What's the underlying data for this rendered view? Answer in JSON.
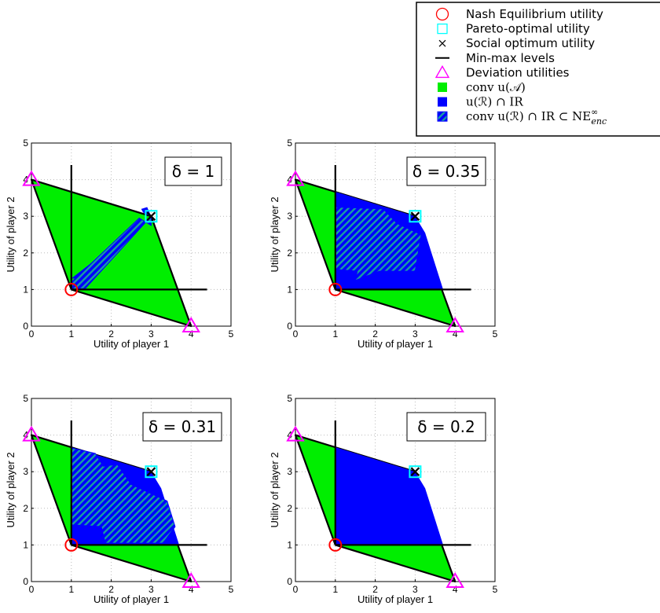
{
  "colors": {
    "conv_fill": "#00ee00",
    "ir_fill": "#0000ff",
    "hatch": "#18a0a0",
    "nash": "#ff0000",
    "pareto": "#00ffff",
    "deviation": "#ff00ff",
    "grid": "#bbbbbb"
  },
  "legend": [
    {
      "icon": "circle-icon",
      "label": "Nash Equilibrium utility"
    },
    {
      "icon": "square-icon",
      "label": "Pareto-optimal utility"
    },
    {
      "icon": "cross-icon",
      "label": "Social optimum utility"
    },
    {
      "icon": "line-icon",
      "label": "Min-max levels"
    },
    {
      "icon": "triangle-icon",
      "label": "Deviation utilities"
    },
    {
      "icon": "green-square-icon",
      "label": "conv u(𝒜)"
    },
    {
      "icon": "blue-square-icon",
      "label": "u(ℛ) ∩ IR"
    },
    {
      "icon": "hatched-square-icon",
      "label": "conv u(ℛ) ∩ IR ⊂ NE",
      "sup": "∞",
      "sub": "enc"
    }
  ],
  "chart_data": [
    {
      "type": "area",
      "delta_label": "δ = 1",
      "xlabel": "Utility of player 1",
      "ylabel": "Utility of player 2",
      "xlim": [
        0,
        5
      ],
      "ylim": [
        0,
        5
      ],
      "xticks": [
        0,
        1,
        2,
        3,
        4,
        5
      ],
      "yticks": [
        0,
        1,
        2,
        3,
        4,
        5
      ],
      "grid": true,
      "conv_region": [
        [
          0,
          4
        ],
        [
          3,
          3
        ],
        [
          4,
          0
        ],
        [
          1,
          1
        ]
      ],
      "minmax_lines": {
        "x": 1,
        "y": 1,
        "x_end": 4.4,
        "y_end": 4.4
      },
      "ir_region": [
        [
          1,
          1.3
        ],
        [
          1.2,
          1.3
        ],
        [
          1.3,
          1.17
        ],
        [
          3,
          3
        ],
        [
          2.8,
          3.1
        ],
        [
          2.75,
          3.2
        ],
        [
          2.9,
          3.25
        ],
        [
          3,
          3
        ]
      ],
      "hatched_region": [
        [
          1,
          1.2
        ],
        [
          2.7,
          2.95
        ],
        [
          3,
          2.75
        ],
        [
          3,
          3
        ],
        [
          1.35,
          1.03
        ],
        [
          1,
          1
        ]
      ],
      "nash": [
        1,
        1
      ],
      "pareto": [
        3,
        3
      ],
      "social_optimum": [
        3,
        3
      ],
      "deviation": [
        [
          0,
          4
        ],
        [
          4,
          0
        ]
      ]
    },
    {
      "type": "area",
      "delta_label": "δ = 0.35",
      "xlabel": "Utility of player 1",
      "ylabel": "Utility of player 2",
      "xlim": [
        0,
        5
      ],
      "ylim": [
        0,
        5
      ],
      "xticks": [
        0,
        1,
        2,
        3,
        4,
        5
      ],
      "yticks": [
        0,
        1,
        2,
        3,
        4,
        5
      ],
      "grid": true,
      "conv_region": [
        [
          0,
          4
        ],
        [
          3,
          3
        ],
        [
          4,
          0
        ],
        [
          1,
          1
        ]
      ],
      "minmax_lines": {
        "x": 1,
        "y": 1,
        "x_end": 4.4,
        "y_end": 4.4
      },
      "ir_region": [
        [
          1,
          1
        ],
        [
          3.7,
          1
        ],
        [
          3.25,
          2.55
        ],
        [
          3,
          3
        ],
        [
          1,
          3.67
        ]
      ],
      "hatched_region": [
        [
          1,
          3.25
        ],
        [
          2.2,
          3.2
        ],
        [
          2.55,
          2.8
        ],
        [
          3.15,
          2.5
        ],
        [
          3,
          1.5
        ],
        [
          2.1,
          1.5
        ],
        [
          1.5,
          1.25
        ],
        [
          1.55,
          1.5
        ],
        [
          1,
          1.55
        ]
      ],
      "nash": [
        1,
        1
      ],
      "pareto": [
        3,
        3
      ],
      "social_optimum": [
        3,
        3
      ],
      "deviation": [
        [
          0,
          4
        ],
        [
          4,
          0
        ]
      ]
    },
    {
      "type": "area",
      "delta_label": "δ = 0.31",
      "xlabel": "Utility of player 1",
      "ylabel": "Utility of player 2",
      "xlim": [
        0,
        5
      ],
      "ylim": [
        0,
        5
      ],
      "xticks": [
        0,
        1,
        2,
        3,
        4,
        5
      ],
      "yticks": [
        0,
        1,
        2,
        3,
        4,
        5
      ],
      "grid": true,
      "conv_region": [
        [
          0,
          4
        ],
        [
          3,
          3
        ],
        [
          4,
          0
        ],
        [
          1,
          1
        ]
      ],
      "minmax_lines": {
        "x": 1,
        "y": 1,
        "x_end": 4.4,
        "y_end": 4.4
      },
      "ir_region": [
        [
          1,
          1
        ],
        [
          3.7,
          1
        ],
        [
          3.25,
          2.55
        ],
        [
          3,
          3
        ],
        [
          1,
          3.67
        ]
      ],
      "hatched_region": [
        [
          1,
          3.65
        ],
        [
          1.6,
          3.5
        ],
        [
          1.8,
          3.15
        ],
        [
          2.15,
          3.2
        ],
        [
          2.5,
          2.65
        ],
        [
          3.4,
          2.2
        ],
        [
          3.6,
          1.5
        ],
        [
          3.3,
          1.05
        ],
        [
          1.85,
          1.05
        ],
        [
          1.75,
          1.5
        ],
        [
          1,
          1.55
        ]
      ],
      "nash": [
        1,
        1
      ],
      "pareto": [
        3,
        3
      ],
      "social_optimum": [
        3,
        3
      ],
      "deviation": [
        [
          0,
          4
        ],
        [
          4,
          0
        ]
      ]
    },
    {
      "type": "area",
      "delta_label": "δ = 0.2",
      "xlabel": "Utility of player 1",
      "ylabel": "Utility of player 2",
      "xlim": [
        0,
        5
      ],
      "ylim": [
        0,
        5
      ],
      "xticks": [
        0,
        1,
        2,
        3,
        4,
        5
      ],
      "yticks": [
        0,
        1,
        2,
        3,
        4,
        5
      ],
      "grid": true,
      "conv_region": [
        [
          0,
          4
        ],
        [
          3,
          3
        ],
        [
          4,
          0
        ],
        [
          1,
          1
        ]
      ],
      "minmax_lines": {
        "x": 1,
        "y": 1,
        "x_end": 4.4,
        "y_end": 4.4
      },
      "ir_region": [
        [
          1,
          1
        ],
        [
          3.7,
          1
        ],
        [
          3.25,
          2.55
        ],
        [
          3,
          3
        ],
        [
          1,
          3.67
        ]
      ],
      "hatched_region": [],
      "nash": [
        1,
        1
      ],
      "pareto": [
        3,
        3
      ],
      "social_optimum": [
        3,
        3
      ],
      "deviation": [
        [
          0,
          4
        ],
        [
          4,
          0
        ]
      ]
    }
  ]
}
